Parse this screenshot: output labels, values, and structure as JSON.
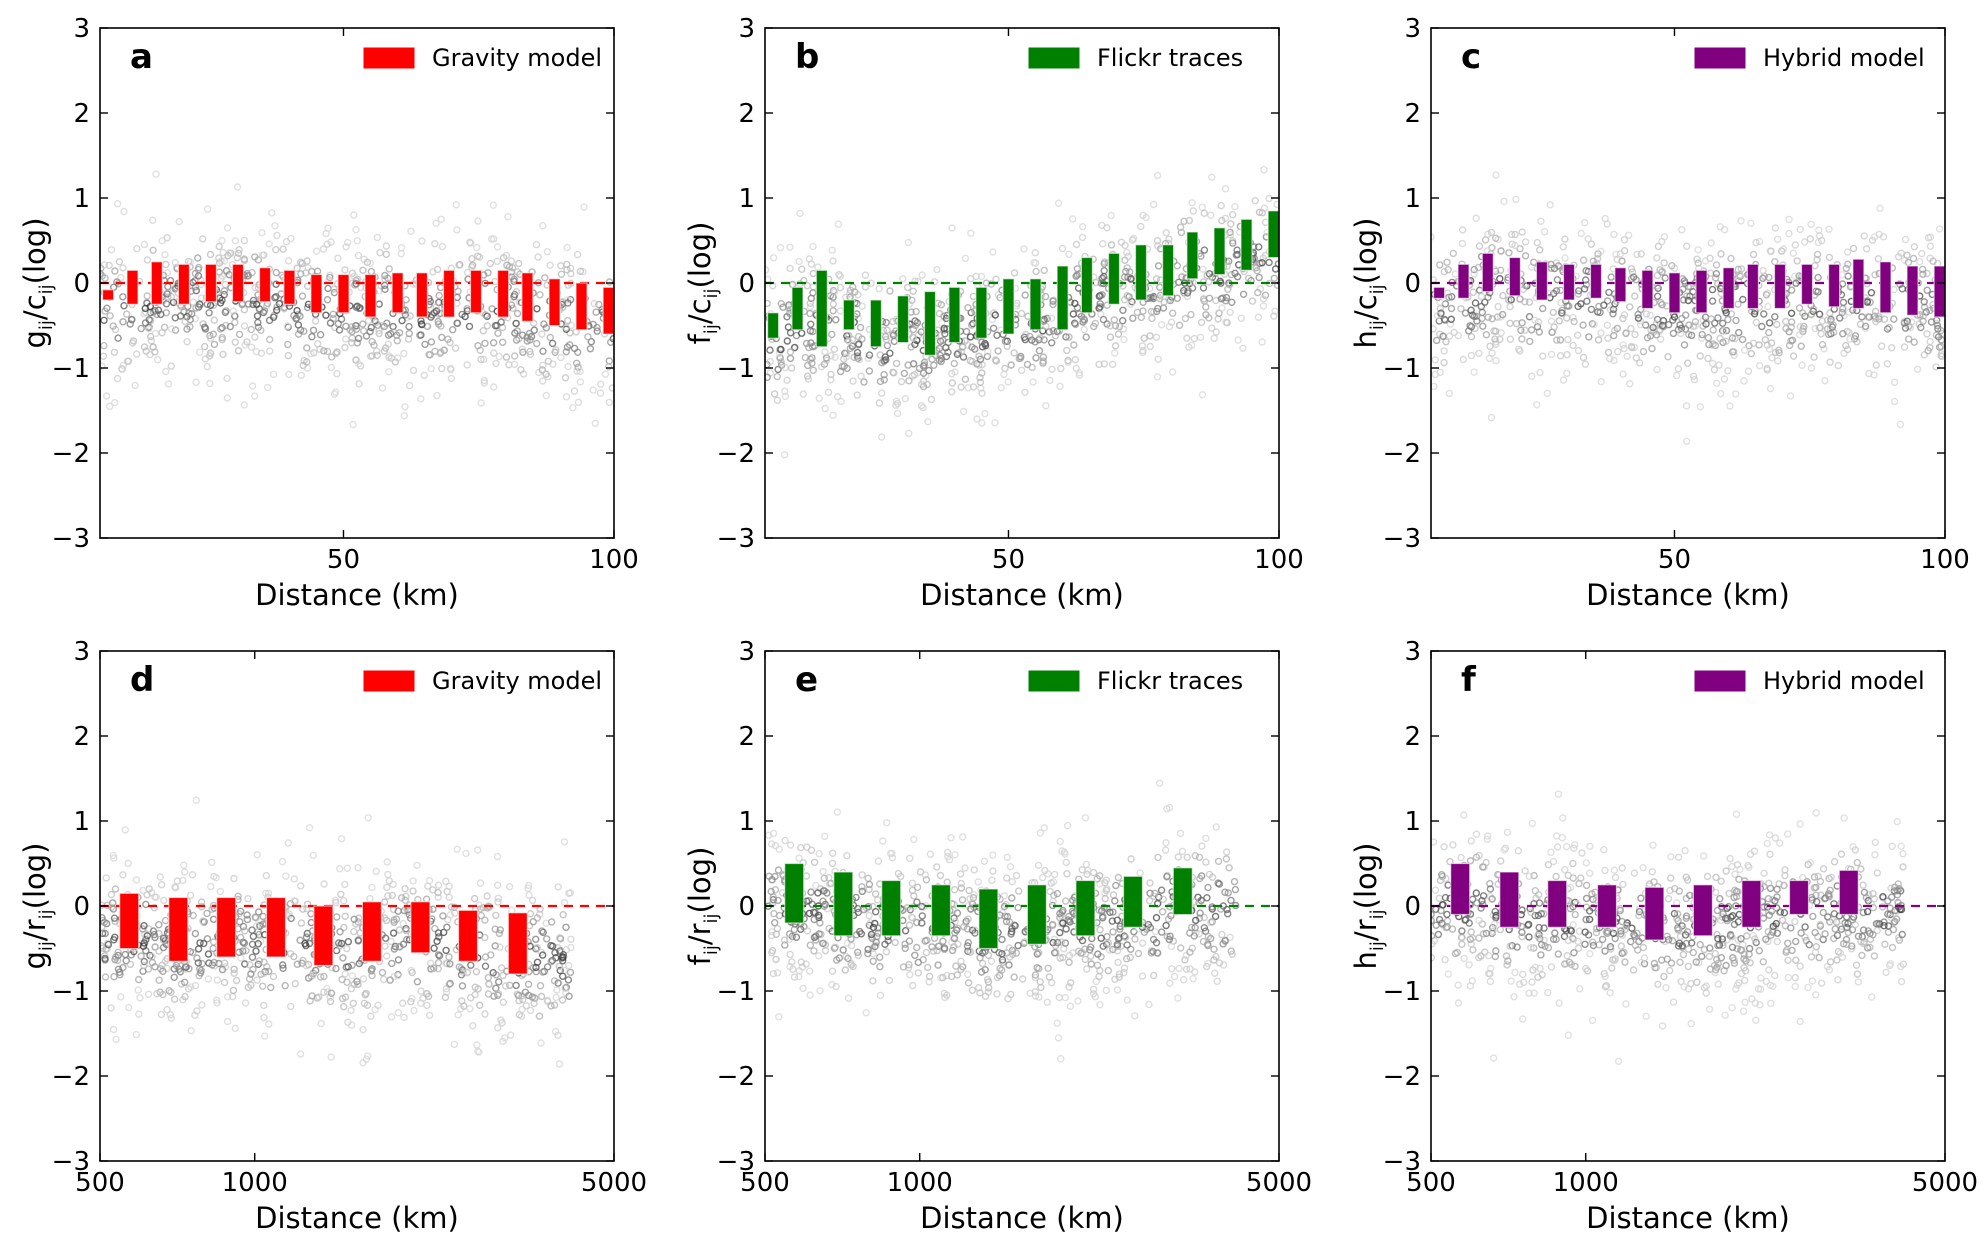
{
  "chart_data": [
    {
      "panel": "a",
      "type": "box",
      "xscale": "linear",
      "xlim": [
        5,
        100
      ],
      "ylim": [
        -3,
        3
      ],
      "xticks": [
        50,
        100
      ],
      "xtick_labels": [
        "50",
        "100"
      ],
      "yticks": [
        -3,
        -2,
        -1,
        0,
        1,
        2,
        3
      ],
      "ytick_labels": [
        "−3",
        "−2",
        "−1",
        "0",
        "1",
        "2",
        "3"
      ],
      "xlabel": "Distance (km)",
      "ylabel": {
        "n": "g",
        "d": "c",
        "suffix": "(log)"
      },
      "legend": "Gravity model",
      "legend_position": "top-right",
      "color": "#ff0000",
      "reference_line": 0,
      "boxes": [
        {
          "x": 6.5,
          "q1": -0.2,
          "q3": -0.08
        },
        {
          "x": 11,
          "q1": -0.25,
          "q3": 0.15
        },
        {
          "x": 15.5,
          "q1": -0.25,
          "q3": 0.25
        },
        {
          "x": 20.5,
          "q1": -0.25,
          "q3": 0.22
        },
        {
          "x": 25.5,
          "q1": -0.22,
          "q3": 0.22
        },
        {
          "x": 30.5,
          "q1": -0.22,
          "q3": 0.22
        },
        {
          "x": 35.5,
          "q1": -0.22,
          "q3": 0.18
        },
        {
          "x": 40,
          "q1": -0.25,
          "q3": 0.15
        },
        {
          "x": 45,
          "q1": -0.35,
          "q3": 0.1
        },
        {
          "x": 50,
          "q1": -0.35,
          "q3": 0.1
        },
        {
          "x": 55,
          "q1": -0.4,
          "q3": 0.1
        },
        {
          "x": 60,
          "q1": -0.35,
          "q3": 0.12
        },
        {
          "x": 64.5,
          "q1": -0.4,
          "q3": 0.12
        },
        {
          "x": 69.5,
          "q1": -0.4,
          "q3": 0.15
        },
        {
          "x": 74.5,
          "q1": -0.35,
          "q3": 0.15
        },
        {
          "x": 79.5,
          "q1": -0.4,
          "q3": 0.15
        },
        {
          "x": 84,
          "q1": -0.45,
          "q3": 0.12
        },
        {
          "x": 89,
          "q1": -0.5,
          "q3": 0.05
        },
        {
          "x": 94,
          "q1": -0.55,
          "q3": 0.0
        },
        {
          "x": 99,
          "q1": -0.6,
          "q3": -0.05
        }
      ]
    },
    {
      "panel": "b",
      "type": "box",
      "xscale": "linear",
      "xlim": [
        5,
        100
      ],
      "ylim": [
        -3,
        3
      ],
      "xticks": [
        50,
        100
      ],
      "xtick_labels": [
        "50",
        "100"
      ],
      "yticks": [
        -3,
        -2,
        -1,
        0,
        1,
        2,
        3
      ],
      "ytick_labels": [
        "−3",
        "−2",
        "−1",
        "0",
        "1",
        "2",
        "3"
      ],
      "xlabel": "Distance (km)",
      "ylabel": {
        "n": "f",
        "d": "c",
        "suffix": "(log)"
      },
      "legend": "Flickr traces",
      "legend_position": "top-right",
      "color": "#008000",
      "reference_line": 0,
      "boxes": [
        {
          "x": 6.5,
          "q1": -0.65,
          "q3": -0.35
        },
        {
          "x": 11,
          "q1": -0.55,
          "q3": -0.05
        },
        {
          "x": 15.5,
          "q1": -0.75,
          "q3": 0.15
        },
        {
          "x": 20.5,
          "q1": -0.55,
          "q3": -0.2
        },
        {
          "x": 25.5,
          "q1": -0.75,
          "q3": -0.2
        },
        {
          "x": 30.5,
          "q1": -0.7,
          "q3": -0.15
        },
        {
          "x": 35.5,
          "q1": -0.85,
          "q3": -0.1
        },
        {
          "x": 40,
          "q1": -0.7,
          "q3": -0.05
        },
        {
          "x": 45,
          "q1": -0.65,
          "q3": -0.05
        },
        {
          "x": 50,
          "q1": -0.6,
          "q3": 0.05
        },
        {
          "x": 55,
          "q1": -0.55,
          "q3": 0.05
        },
        {
          "x": 60,
          "q1": -0.55,
          "q3": 0.2
        },
        {
          "x": 64.5,
          "q1": -0.35,
          "q3": 0.3
        },
        {
          "x": 69.5,
          "q1": -0.25,
          "q3": 0.35
        },
        {
          "x": 74.5,
          "q1": -0.2,
          "q3": 0.45
        },
        {
          "x": 79.5,
          "q1": -0.15,
          "q3": 0.45
        },
        {
          "x": 84,
          "q1": 0.05,
          "q3": 0.6
        },
        {
          "x": 89,
          "q1": 0.1,
          "q3": 0.65
        },
        {
          "x": 94,
          "q1": 0.15,
          "q3": 0.75
        },
        {
          "x": 99,
          "q1": 0.3,
          "q3": 0.85
        }
      ]
    },
    {
      "panel": "c",
      "type": "box",
      "xscale": "linear",
      "xlim": [
        5,
        100
      ],
      "ylim": [
        -3,
        3
      ],
      "xticks": [
        50,
        100
      ],
      "xtick_labels": [
        "50",
        "100"
      ],
      "yticks": [
        -3,
        -2,
        -1,
        0,
        1,
        2,
        3
      ],
      "ytick_labels": [
        "−3",
        "−2",
        "−1",
        "0",
        "1",
        "2",
        "3"
      ],
      "xlabel": "Distance (km)",
      "ylabel": {
        "n": "h",
        "d": "c",
        "suffix": "(log)"
      },
      "legend": "Hybrid model",
      "legend_position": "top-right",
      "color": "#800080",
      "reference_line": 0,
      "boxes": [
        {
          "x": 6.5,
          "q1": -0.18,
          "q3": -0.05
        },
        {
          "x": 11,
          "q1": -0.18,
          "q3": 0.22
        },
        {
          "x": 15.5,
          "q1": -0.1,
          "q3": 0.35
        },
        {
          "x": 20.5,
          "q1": -0.15,
          "q3": 0.3
        },
        {
          "x": 25.5,
          "q1": -0.2,
          "q3": 0.25
        },
        {
          "x": 30.5,
          "q1": -0.2,
          "q3": 0.22
        },
        {
          "x": 35.5,
          "q1": -0.18,
          "q3": 0.22
        },
        {
          "x": 40,
          "q1": -0.22,
          "q3": 0.18
        },
        {
          "x": 45,
          "q1": -0.3,
          "q3": 0.15
        },
        {
          "x": 50,
          "q1": -0.35,
          "q3": 0.12
        },
        {
          "x": 55,
          "q1": -0.35,
          "q3": 0.15
        },
        {
          "x": 60,
          "q1": -0.3,
          "q3": 0.18
        },
        {
          "x": 64.5,
          "q1": -0.3,
          "q3": 0.22
        },
        {
          "x": 69.5,
          "q1": -0.3,
          "q3": 0.22
        },
        {
          "x": 74.5,
          "q1": -0.25,
          "q3": 0.22
        },
        {
          "x": 79.5,
          "q1": -0.28,
          "q3": 0.22
        },
        {
          "x": 84,
          "q1": -0.3,
          "q3": 0.28
        },
        {
          "x": 89,
          "q1": -0.35,
          "q3": 0.25
        },
        {
          "x": 94,
          "q1": -0.38,
          "q3": 0.2
        },
        {
          "x": 99,
          "q1": -0.4,
          "q3": 0.2
        }
      ]
    },
    {
      "panel": "d",
      "type": "box",
      "xscale": "log",
      "xlim": [
        500,
        5000
      ],
      "ylim": [
        -3,
        3
      ],
      "xticks": [
        500,
        1000,
        5000
      ],
      "xtick_labels": [
        "500",
        "1000",
        "5000"
      ],
      "yticks": [
        -3,
        -2,
        -1,
        0,
        1,
        2,
        3
      ],
      "ytick_labels": [
        "−3",
        "−2",
        "−1",
        "0",
        "1",
        "2",
        "3"
      ],
      "xlabel": "Distance (km)",
      "ylabel": {
        "n": "g",
        "d": "r",
        "suffix": "(log)"
      },
      "legend": "Gravity model",
      "legend_position": "top-right",
      "color": "#ff0000",
      "reference_line": 0,
      "boxes": [
        {
          "x": 570,
          "q1": -0.5,
          "q3": 0.15
        },
        {
          "x": 710,
          "q1": -0.65,
          "q3": 0.1
        },
        {
          "x": 880,
          "q1": -0.6,
          "q3": 0.1
        },
        {
          "x": 1100,
          "q1": -0.6,
          "q3": 0.1
        },
        {
          "x": 1360,
          "q1": -0.7,
          "q3": 0.0
        },
        {
          "x": 1690,
          "q1": -0.65,
          "q3": 0.05
        },
        {
          "x": 2100,
          "q1": -0.55,
          "q3": 0.05
        },
        {
          "x": 2600,
          "q1": -0.65,
          "q3": -0.05
        },
        {
          "x": 3250,
          "q1": -0.8,
          "q3": -0.08
        }
      ]
    },
    {
      "panel": "e",
      "type": "box",
      "xscale": "log",
      "xlim": [
        500,
        5000
      ],
      "ylim": [
        -3,
        3
      ],
      "xticks": [
        500,
        1000,
        5000
      ],
      "xtick_labels": [
        "500",
        "1000",
        "5000"
      ],
      "yticks": [
        -3,
        -2,
        -1,
        0,
        1,
        2,
        3
      ],
      "ytick_labels": [
        "−3",
        "−2",
        "−1",
        "0",
        "1",
        "2",
        "3"
      ],
      "xlabel": "Distance (km)",
      "ylabel": {
        "n": "f",
        "d": "r",
        "suffix": "(log)"
      },
      "legend": "Flickr traces",
      "legend_position": "top-right",
      "color": "#008000",
      "reference_line": 0,
      "boxes": [
        {
          "x": 570,
          "q1": -0.2,
          "q3": 0.5
        },
        {
          "x": 710,
          "q1": -0.35,
          "q3": 0.4
        },
        {
          "x": 880,
          "q1": -0.35,
          "q3": 0.3
        },
        {
          "x": 1100,
          "q1": -0.35,
          "q3": 0.25
        },
        {
          "x": 1360,
          "q1": -0.5,
          "q3": 0.2
        },
        {
          "x": 1690,
          "q1": -0.45,
          "q3": 0.25
        },
        {
          "x": 2100,
          "q1": -0.35,
          "q3": 0.3
        },
        {
          "x": 2600,
          "q1": -0.25,
          "q3": 0.35
        },
        {
          "x": 3250,
          "q1": -0.1,
          "q3": 0.45
        }
      ]
    },
    {
      "panel": "f",
      "type": "box",
      "xscale": "log",
      "xlim": [
        500,
        5000
      ],
      "ylim": [
        -3,
        3
      ],
      "xticks": [
        500,
        1000,
        5000
      ],
      "xtick_labels": [
        "500",
        "1000",
        "5000"
      ],
      "yticks": [
        -3,
        -2,
        -1,
        0,
        1,
        2,
        3
      ],
      "ytick_labels": [
        "−3",
        "−2",
        "−1",
        "0",
        "1",
        "2",
        "3"
      ],
      "xlabel": "Distance (km)",
      "ylabel": {
        "n": "h",
        "d": "r",
        "suffix": "(log)"
      },
      "legend": "Hybrid model",
      "legend_position": "top-right",
      "color": "#800080",
      "reference_line": 0,
      "boxes": [
        {
          "x": 570,
          "q1": -0.1,
          "q3": 0.5
        },
        {
          "x": 710,
          "q1": -0.25,
          "q3": 0.4
        },
        {
          "x": 880,
          "q1": -0.25,
          "q3": 0.3
        },
        {
          "x": 1100,
          "q1": -0.25,
          "q3": 0.25
        },
        {
          "x": 1360,
          "q1": -0.4,
          "q3": 0.22
        },
        {
          "x": 1690,
          "q1": -0.35,
          "q3": 0.25
        },
        {
          "x": 2100,
          "q1": -0.25,
          "q3": 0.3
        },
        {
          "x": 2600,
          "q1": -0.1,
          "q3": 0.3
        },
        {
          "x": 3250,
          "q1": -0.1,
          "q3": 0.42
        }
      ]
    }
  ]
}
